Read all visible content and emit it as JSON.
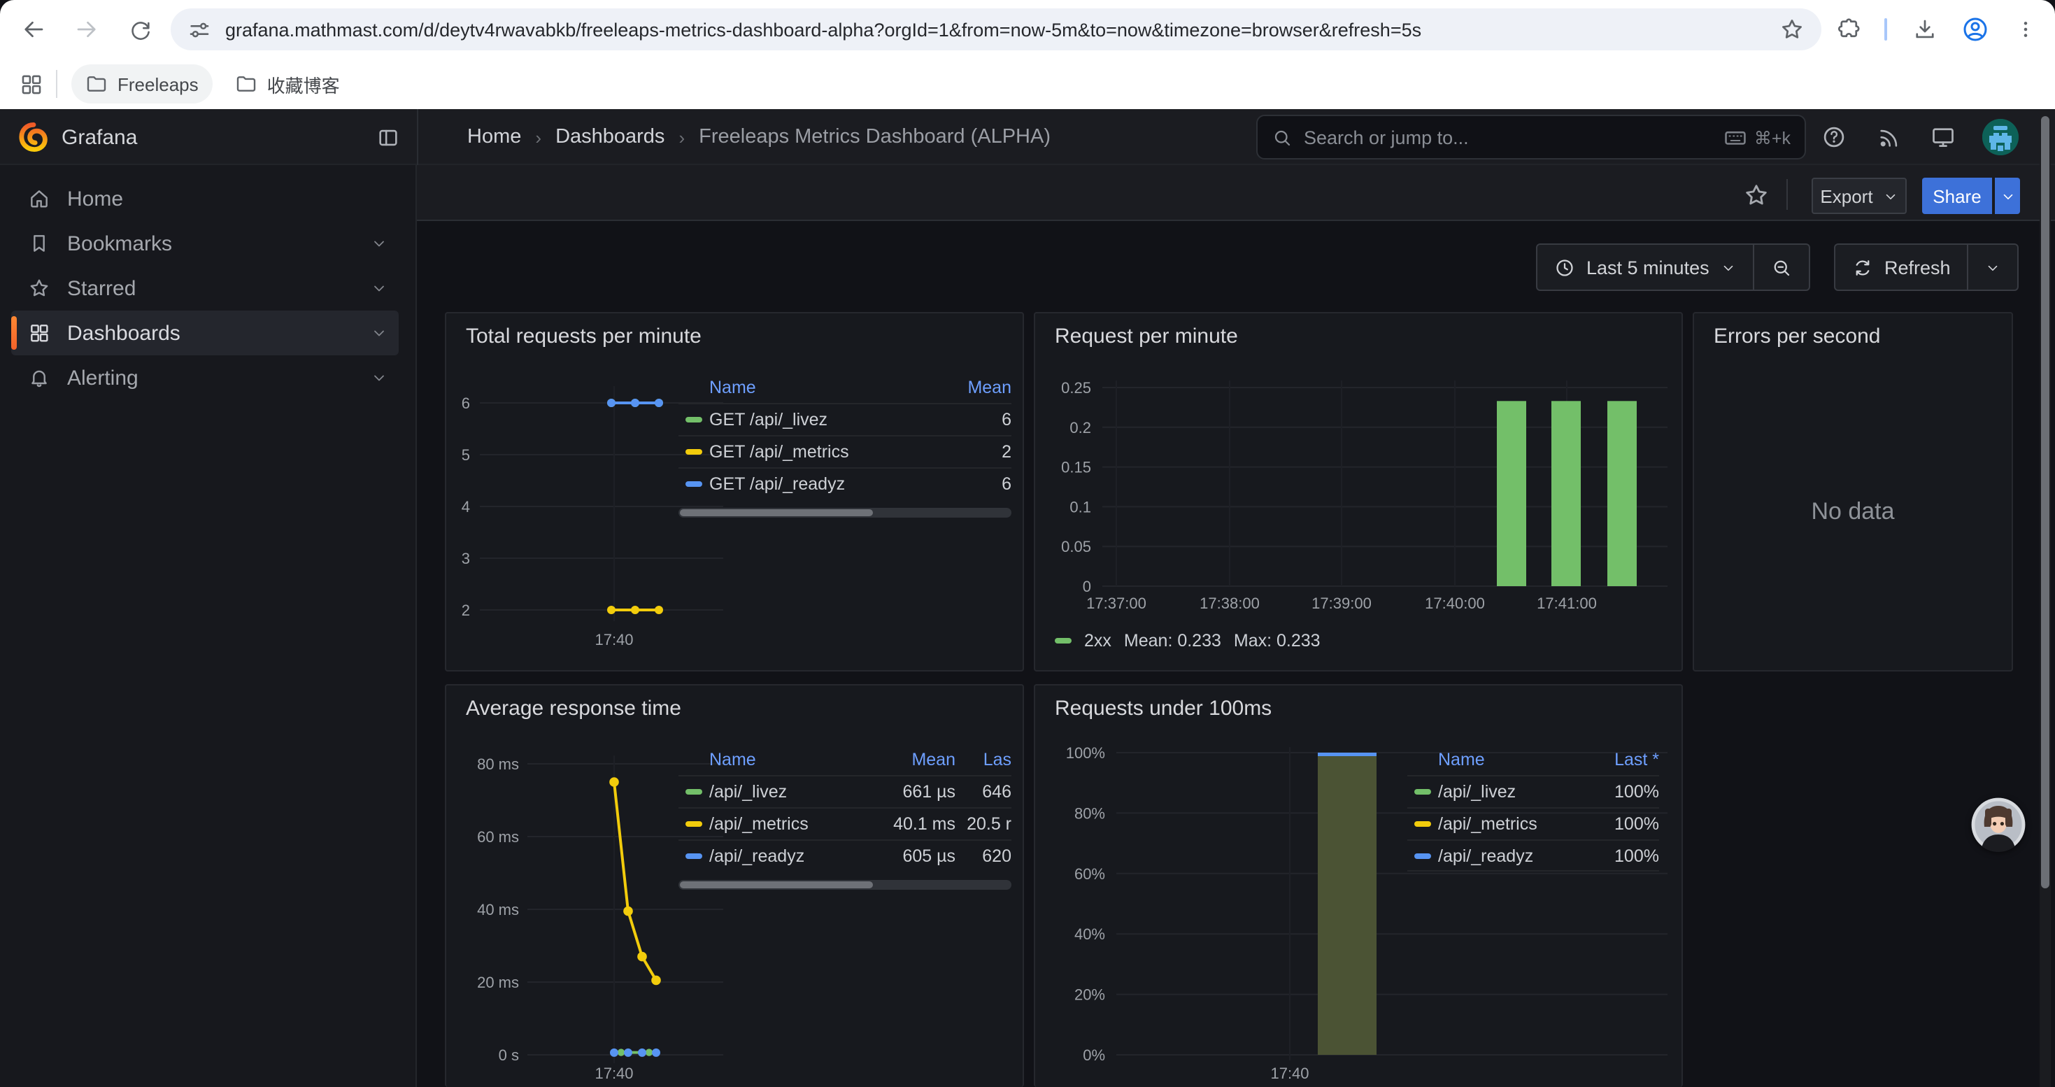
{
  "browser": {
    "url": "grafana.mathmast.com/d/deytv4rwavabkb/freeleaps-metrics-dashboard-alpha?orgId=1&from=now-5m&to=now&timezone=browser&refresh=5s",
    "bookmarks": [
      {
        "label": "Freeleaps"
      },
      {
        "label": "收藏博客"
      }
    ]
  },
  "grafana": {
    "brand": "Grafana",
    "breadcrumb": {
      "items": [
        "Home",
        "Dashboards",
        "Freeleaps Metrics Dashboard (ALPHA)"
      ],
      "separator": "›"
    },
    "search": {
      "placeholder": "Search or jump to...",
      "shortcut": "⌘+k"
    },
    "toolbar": {
      "export_label": "Export",
      "share_label": "Share"
    },
    "timebar": {
      "range_label": "Last 5 minutes",
      "refresh_label": "Refresh"
    },
    "sidebar": {
      "items": [
        {
          "label": "Home"
        },
        {
          "label": "Bookmarks"
        },
        {
          "label": "Starred"
        },
        {
          "label": "Dashboards",
          "active": true
        },
        {
          "label": "Alerting"
        }
      ]
    }
  },
  "colors": {
    "accent_blue": "#3d71d9",
    "link_blue": "#6e9fff",
    "green": "#73bf69",
    "yellow": "#f2cc0c",
    "blue": "#5794f2",
    "active_orange": "#ff780a"
  },
  "panels": {
    "p1": {
      "title": "Total requests per minute",
      "x_tick": "17:40",
      "table": {
        "headers": [
          "Name",
          "Mean"
        ],
        "rows": [
          {
            "name": "GET /api/_livez",
            "mean": "6",
            "color": "#73bf69"
          },
          {
            "name": "GET /api/_metrics",
            "mean": "2",
            "color": "#f2cc0c"
          },
          {
            "name": "GET /api/_readyz",
            "mean": "6",
            "color": "#5794f2"
          }
        ]
      }
    },
    "p2": {
      "title": "Request per minute",
      "legend": {
        "series": "2xx",
        "mean": "Mean: 0.233",
        "max": "Max: 0.233",
        "color": "#73bf69"
      }
    },
    "p3": {
      "title": "Errors per second",
      "message": "No data"
    },
    "p4": {
      "title": "Average response time",
      "x_tick": "17:40",
      "table": {
        "headers": [
          "Name",
          "Mean",
          "Las"
        ],
        "rows": [
          {
            "name": "/api/_livez",
            "mean": "661 µs",
            "last": "646",
            "color": "#73bf69"
          },
          {
            "name": "/api/_metrics",
            "mean": "40.1 ms",
            "last": "20.5 r",
            "color": "#f2cc0c"
          },
          {
            "name": "/api/_readyz",
            "mean": "605 µs",
            "last": "620",
            "color": "#5794f2"
          }
        ]
      }
    },
    "p5": {
      "title": "Requests under 100ms",
      "x_tick": "17:40",
      "table": {
        "headers": [
          "Name",
          "Last *"
        ],
        "rows": [
          {
            "name": "/api/_livez",
            "last": "100%",
            "color": "#73bf69"
          },
          {
            "name": "/api/_metrics",
            "last": "100%",
            "color": "#f2cc0c"
          },
          {
            "name": "/api/_readyz",
            "last": "100%",
            "color": "#5794f2"
          }
        ]
      }
    }
  },
  "chart_data": [
    {
      "panel": "Total requests per minute",
      "type": "line",
      "y_ticks": [
        "6",
        "5",
        "4",
        "3",
        "2"
      ],
      "ylim": [
        2,
        6
      ],
      "x_ticks": [
        "17:40"
      ],
      "series": [
        {
          "name": "GET /api/_livez",
          "color": "#73bf69",
          "values": [
            6,
            6,
            6
          ],
          "mean": 6
        },
        {
          "name": "GET /api/_metrics",
          "color": "#f2cc0c",
          "values": [
            2,
            2,
            2
          ],
          "mean": 2
        },
        {
          "name": "GET /api/_readyz",
          "color": "#5794f2",
          "values": [
            6,
            6,
            6
          ],
          "mean": 6
        }
      ],
      "legend_position": "right-table"
    },
    {
      "panel": "Request per minute",
      "type": "bar",
      "y_ticks": [
        "0.25",
        "0.2",
        "0.15",
        "0.1",
        "0.05",
        "0"
      ],
      "ylim": [
        0,
        0.25
      ],
      "x_ticks": [
        "17:37:00",
        "17:38:00",
        "17:39:00",
        "17:40:00",
        "17:41:00"
      ],
      "series": [
        {
          "name": "2xx",
          "color": "#73bf69",
          "values": [
            0.233,
            0.233,
            0.233
          ],
          "mean": 0.233,
          "max": 0.233
        }
      ],
      "note": "three bars between 17:40:00 and 17:41:30"
    },
    {
      "panel": "Errors per second",
      "type": "none",
      "message": "No data"
    },
    {
      "panel": "Average response time",
      "type": "line",
      "y_ticks": [
        "80 ms",
        "60 ms",
        "40 ms",
        "20 ms",
        "0 s"
      ],
      "ylim_ms": [
        0,
        80
      ],
      "x_ticks": [
        "17:40"
      ],
      "series": [
        {
          "name": "/api/_metrics",
          "color": "#f2cc0c",
          "values_ms": [
            75,
            39.5,
            27,
            20.5
          ]
        },
        {
          "name": "/api/_livez",
          "color": "#73bf69",
          "values_ms": [
            0.66,
            0.66,
            0.66,
            0.66
          ]
        },
        {
          "name": "/api/_readyz",
          "color": "#5794f2",
          "values_ms": [
            0.6,
            0.6,
            0.6,
            0.6
          ]
        }
      ]
    },
    {
      "panel": "Requests under 100ms",
      "type": "bar",
      "y_ticks": [
        "100%",
        "80%",
        "60%",
        "40%",
        "20%",
        "0%"
      ],
      "ylim": [
        0,
        100
      ],
      "x_ticks": [
        "17:40"
      ],
      "series": [
        {
          "name": "/api/_livez",
          "color": "#73bf69",
          "values": [
            100
          ]
        },
        {
          "name": "/api/_metrics",
          "color": "#f2cc0c",
          "values": [
            100
          ]
        },
        {
          "name": "/api/_readyz",
          "color": "#5794f2",
          "values": [
            100
          ]
        }
      ],
      "bar_fill": "#4b5334",
      "bar_cap_color": "#5794f2"
    }
  ]
}
